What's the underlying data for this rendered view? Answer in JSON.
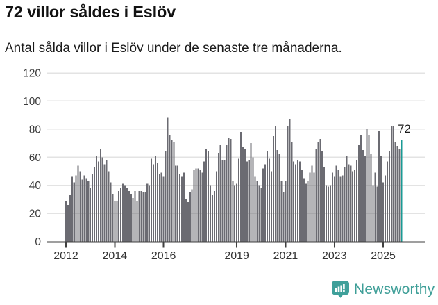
{
  "header": {
    "title": "72 villor såldes i Eslöv",
    "subtitle": "Antal sålda villor i Eslöv under de senaste tre månaderna."
  },
  "chart_data": {
    "type": "bar",
    "title": "72 villor såldes i Eslöv",
    "subtitle": "Antal sålda villor i Eslöv under de senaste tre månaderna.",
    "unit": "antal sålda villor (rullande tremånadersvärde)",
    "frequency": "monthly",
    "start_period": "2012-01",
    "ylim": [
      0,
      120
    ],
    "yticks": [
      0,
      20,
      40,
      60,
      80,
      100,
      120
    ],
    "xticks": [
      2012,
      2014,
      2016,
      2019,
      2021,
      2023,
      2025
    ],
    "grid": true,
    "annotation_last_value": "72",
    "values": [
      29,
      26,
      33,
      46,
      42,
      47,
      54,
      50,
      44,
      47,
      45,
      43,
      38,
      48,
      53,
      61,
      57,
      66,
      60,
      55,
      58,
      50,
      42,
      34,
      29,
      29,
      36,
      38,
      41,
      40,
      38,
      36,
      34,
      31,
      36,
      29,
      36,
      36,
      35,
      35,
      41,
      40,
      59,
      55,
      61,
      56,
      48,
      49,
      46,
      64,
      88,
      76,
      72,
      71,
      54,
      54,
      48,
      46,
      49,
      30,
      28,
      35,
      37,
      51,
      52,
      52,
      51,
      49,
      57,
      66,
      64,
      40,
      33,
      36,
      50,
      63,
      69,
      58,
      58,
      69,
      74,
      73,
      43,
      40,
      41,
      59,
      78,
      67,
      66,
      57,
      58,
      70,
      60,
      46,
      43,
      40,
      38,
      52,
      55,
      64,
      59,
      50,
      75,
      82,
      65,
      62,
      43,
      35,
      43,
      82,
      87,
      71,
      57,
      55,
      58,
      57,
      51,
      45,
      41,
      43,
      49,
      54,
      49,
      66,
      71,
      73,
      64,
      53,
      40,
      39,
      40,
      49,
      46,
      54,
      51,
      46,
      47,
      53,
      61,
      55,
      54,
      50,
      51,
      58,
      69,
      76,
      65,
      61,
      80,
      76,
      62,
      40,
      49,
      39,
      79,
      61,
      42,
      47,
      57,
      64,
      82,
      82,
      71,
      68,
      66,
      72
    ],
    "highlight_last": true,
    "colors": {
      "bar": "#6b6b72",
      "highlight": "#1a9a94",
      "grid": "#e3e3e3",
      "axis": "#3f3f3f",
      "tick_label": "#3a3a3a",
      "annotation": "#1a1a1a"
    }
  },
  "footer": {
    "brand": "Newsworthy",
    "brand_color": "#3f9f98",
    "logo_icon": "bar-chart-speech-bubble-icon"
  }
}
